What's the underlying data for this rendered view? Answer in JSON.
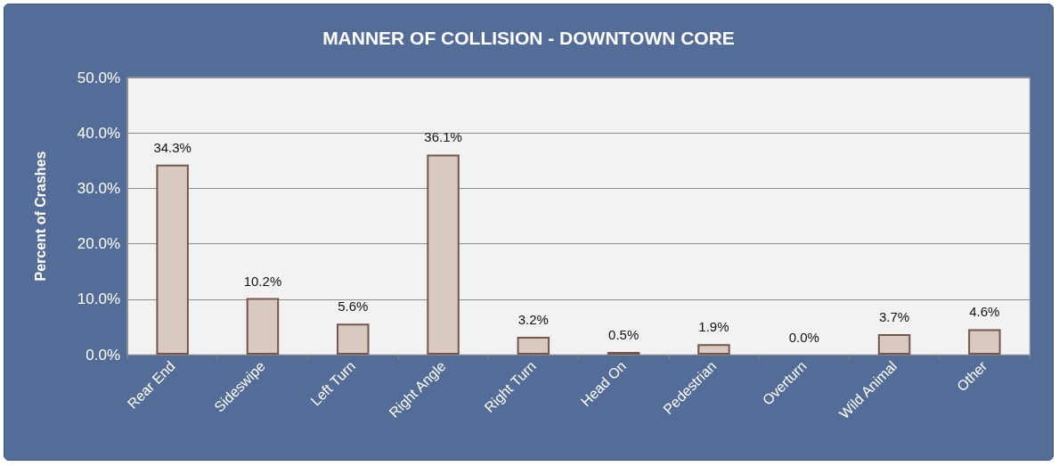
{
  "chart_data": {
    "type": "bar",
    "title": "MANNER OF COLLISION - DOWNTOWN CORE",
    "ylabel": "Percent of Crashes",
    "categories": [
      "Rear End",
      "Sideswipe",
      "Left Turn",
      "Right Angle",
      "Right Turn",
      "Head On",
      "Pedestrian",
      "Overturn",
      "Wild Animal",
      "Other"
    ],
    "values": [
      34.3,
      10.2,
      5.6,
      36.1,
      3.2,
      0.5,
      1.9,
      0.0,
      3.7,
      4.6
    ],
    "value_labels": [
      "34.3%",
      "10.2%",
      "5.6%",
      "36.1%",
      "3.2%",
      "0.5%",
      "1.9%",
      "0.0%",
      "3.7%",
      "4.6%"
    ],
    "color": "#d8cac1",
    "ylim": [
      0,
      50
    ],
    "yticks": [
      {
        "value": 0,
        "label": "0.0%"
      },
      {
        "value": 10,
        "label": "10.0%"
      },
      {
        "value": 20,
        "label": "20.0%"
      },
      {
        "value": 30,
        "label": "30.0%"
      },
      {
        "value": 40,
        "label": "40.0%"
      },
      {
        "value": 50,
        "label": "50.0%"
      }
    ],
    "grid": "y"
  }
}
